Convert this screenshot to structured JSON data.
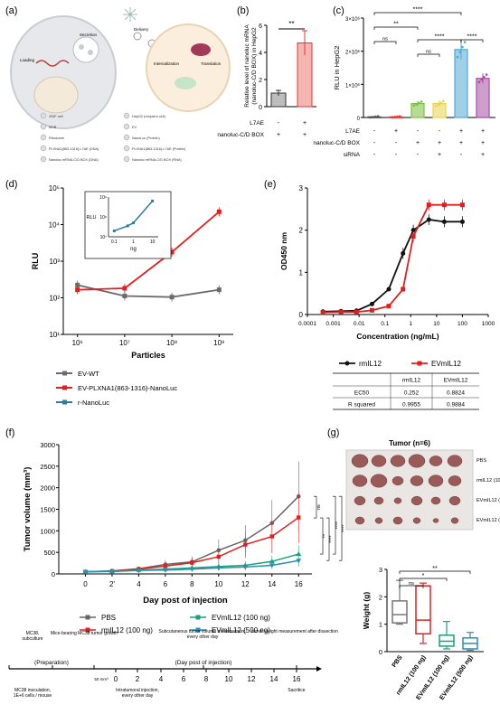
{
  "panel_labels": {
    "a": "(a)",
    "b": "(b)",
    "c": "(c)",
    "d": "(d)",
    "e": "(e)",
    "f": "(f)",
    "g": "(g)"
  },
  "panel_a": {
    "labels": [
      "Secretion",
      "Loading",
      "Delivery",
      "Internalization",
      "Translation"
    ],
    "legend": [
      "293F cell",
      "HepG2 (recipient cell)",
      "MVB",
      "EV",
      "Ribosome",
      "NanoLuc (Protein)",
      "PLXNA1(863-1316)-L7AE (DNA)",
      "PLXNA1(863-1316)-L7AE (Protein)",
      "Nanoluc mRNA-C/D BOX (DNA)",
      "Nanoluc mRNA-C/D BOX (RNA)"
    ]
  },
  "chart_data": [
    {
      "panel": "b",
      "type": "bar",
      "ylabel": "Relative level of nanoluc mRNA (nanoluc-C/D BOX) in HepG2",
      "categories": [
        "-",
        "+"
      ],
      "values": [
        1.0,
        4.7
      ],
      "errors": [
        0.2,
        0.9
      ],
      "ylim": [
        0,
        6
      ],
      "yticks": [
        0,
        2,
        4,
        6
      ],
      "colors": [
        "#bdbdbd",
        "#f4b6b0"
      ],
      "significance": "**",
      "row_labels": [
        "L7AE",
        "nanoluc-C/D BOX"
      ],
      "row_values": [
        [
          "-",
          "+"
        ],
        [
          "+",
          "+"
        ]
      ]
    },
    {
      "panel": "c",
      "type": "bar",
      "ylabel": "RLU in HepG2",
      "values": [
        0.02,
        0.02,
        0.42,
        0.42,
        2.05,
        1.18
      ],
      "errors": [
        0.02,
        0.02,
        0.08,
        0.1,
        0.3,
        0.15
      ],
      "ylim": [
        0,
        3
      ],
      "ytick_labels": [
        "0",
        "1×10⁶",
        "2×10⁶",
        "3×10⁶"
      ],
      "colors": [
        "#555555",
        "#e53935",
        "#7bc043",
        "#e8d44d",
        "#4fa9d6",
        "#a64ca6"
      ],
      "significance": [
        {
          "a": 0,
          "b": 4,
          "label": "****"
        },
        {
          "a": 0,
          "b": 2,
          "label": "**"
        },
        {
          "a": 0,
          "b": 1,
          "label": "ns"
        },
        {
          "a": 2,
          "b": 3,
          "label": "ns"
        },
        {
          "a": 2,
          "b": 4,
          "label": "****"
        },
        {
          "a": 4,
          "b": 5,
          "label": "****"
        }
      ],
      "row_labels": [
        "L7AE",
        "nanoluc-C/D BOX",
        "siRNA"
      ],
      "row_values": [
        [
          "-",
          "+",
          "-",
          "-",
          "+",
          "+"
        ],
        [
          "-",
          "-",
          "+",
          "+",
          "+",
          "+"
        ],
        [
          "-",
          "-",
          "-",
          "+",
          "-",
          "+"
        ]
      ]
    },
    {
      "panel": "d",
      "type": "line",
      "xlabel": "Particles",
      "ylabel": "RLU",
      "xscale": "log",
      "yscale": "log",
      "xlim": [
        1,
        9
      ],
      "ylim": [
        1,
        5
      ],
      "xtick_labels": [
        "10⁶",
        "10⁷",
        "10⁸",
        "10⁹"
      ],
      "xtick_pos": [
        6,
        7,
        8,
        9
      ],
      "ytick_labels": [
        "10¹",
        "10²",
        "10³",
        "10⁴",
        "10⁵"
      ],
      "ytick_pos": [
        1,
        2,
        3,
        4,
        5
      ],
      "series": [
        {
          "name": "EV-WT",
          "color": "#6b6b6b",
          "x": [
            6,
            7,
            8,
            9
          ],
          "y": [
            2.35,
            2.05,
            2.02,
            2.22
          ]
        },
        {
          "name": "EV-PLXNA1(863-1316)-NanoLuc",
          "color": "#e02020",
          "x": [
            6,
            7,
            8,
            9
          ],
          "y": [
            2.22,
            2.26,
            3.25,
            4.35
          ]
        }
      ],
      "inset": {
        "xlabel": "ng",
        "ylabel": "RLU",
        "xtick_labels": [
          "0.1",
          "1",
          "10"
        ],
        "ytick_labels": [
          "10⁷",
          "10⁸",
          "10⁹"
        ],
        "series": [
          {
            "name": "r-NanoLuc",
            "color": "#2a7f9e",
            "x": [
              -1,
              -0.3,
              0,
              1
            ],
            "y": [
              7.3,
              7.55,
              7.7,
              8.8
            ]
          }
        ]
      },
      "legend": [
        "EV-WT",
        "EV-PLXNA1(863-1316)-NanoLuc",
        "r-NanoLuc"
      ]
    },
    {
      "panel": "e",
      "type": "line",
      "xlabel": "Concentration (ng/mL)",
      "ylabel": "OD450 nm",
      "xscale": "log",
      "xtick_labels": [
        "0.0001",
        "0.001",
        "0.01",
        "0.1",
        "1",
        "10",
        "100",
        "1000"
      ],
      "ylim": [
        0,
        3
      ],
      "ytick_labels": [
        "0",
        "1",
        "2",
        "3"
      ],
      "series": [
        {
          "name": "rmIL12",
          "color": "#111111",
          "x": [
            -3.4,
            -2.7,
            -2.1,
            -1.5,
            -0.85,
            -0.3,
            0.1,
            0.7,
            1.3,
            2.0
          ],
          "y": [
            0.07,
            0.08,
            0.09,
            0.25,
            0.6,
            1.45,
            2.0,
            2.25,
            2.2,
            2.2
          ]
        },
        {
          "name": "EVmIL12",
          "color": "#e02020",
          "x": [
            -3.4,
            -2.7,
            -2.1,
            -1.5,
            -0.85,
            -0.3,
            0.1,
            0.7,
            1.3,
            2.0
          ],
          "y": [
            0.05,
            0.06,
            0.06,
            0.1,
            0.2,
            0.6,
            1.85,
            2.6,
            2.6,
            2.6
          ]
        }
      ],
      "table": {
        "headers": [
          "",
          "rmIL12",
          "EVmIL12"
        ],
        "rows": [
          [
            "EC50",
            "0.252",
            "0.8824"
          ],
          [
            "R squared",
            "0.9955",
            "0.9884"
          ]
        ]
      }
    },
    {
      "panel": "f",
      "type": "line",
      "xlabel": "Day post of injection",
      "ylabel": "Tumor volume (mm³)",
      "x": [
        0,
        2,
        4,
        6,
        8,
        10,
        12,
        14,
        16
      ],
      "xtick_labels": [
        "0",
        "2'",
        "4",
        "6",
        "8",
        "10",
        "12",
        "14",
        "16"
      ],
      "ylim": [
        0,
        3000
      ],
      "yticks": [
        0,
        500,
        1000,
        1500,
        2000,
        2500,
        3000
      ],
      "series": [
        {
          "name": "PBS",
          "color": "#666666",
          "y": [
            50,
            70,
            120,
            220,
            280,
            550,
            780,
            1180,
            1800
          ]
        },
        {
          "name": "rmIL12 (100 ng)",
          "color": "#e02020",
          "y": [
            50,
            65,
            110,
            180,
            260,
            400,
            680,
            870,
            1310
          ]
        },
        {
          "name": "EVmIL12 (100 ng)",
          "color": "#1aa07a",
          "y": [
            50,
            60,
            90,
            110,
            140,
            170,
            200,
            290,
            460
          ]
        },
        {
          "name": "EVmIL12 (500 ng)",
          "color": "#2a8fb0",
          "y": [
            50,
            55,
            80,
            90,
            110,
            140,
            160,
            200,
            310
          ]
        }
      ],
      "significance": [
        "ns",
        "**",
        "****",
        "****",
        "****"
      ]
    },
    {
      "panel": "g",
      "type": "box",
      "ylabel": "Weight (g)",
      "ylim": [
        0,
        3
      ],
      "yticks": [
        0,
        1,
        2,
        3
      ],
      "categories": [
        "PBS",
        "rmIL12 (100 ng)",
        "EVmIL12 (100 ng)",
        "EVmIL12 (500 ng)"
      ],
      "colors": [
        "#777777",
        "#e02020",
        "#1aa07a",
        "#2a8fb0"
      ],
      "boxes": [
        {
          "min": 1.0,
          "q1": 1.05,
          "median": 1.35,
          "q3": 1.85,
          "max": 2.6
        },
        {
          "min": 0.3,
          "q1": 0.65,
          "median": 1.15,
          "q3": 2.4,
          "max": 2.5
        },
        {
          "min": 0.1,
          "q1": 0.2,
          "median": 0.38,
          "q3": 0.6,
          "max": 1.1
        },
        {
          "min": 0.05,
          "q1": 0.1,
          "median": 0.3,
          "q3": 0.5,
          "max": 0.7
        }
      ],
      "significance": [
        {
          "a": 0,
          "b": 1,
          "label": "ns"
        },
        {
          "a": 0,
          "b": 2,
          "label": "*"
        },
        {
          "a": 0,
          "b": 3,
          "label": "**"
        }
      ],
      "photo_title": "Tumor (n=6)",
      "photo_rows": [
        "PBS",
        "rmIL12 (100 ng)",
        "EVmIL12 (100 ng)",
        "EVmIL12 (500 ng)"
      ]
    }
  ],
  "timeline": {
    "top_labels": [
      "MC38, subculture",
      "Mice-bearing MC38 tumor growth",
      "Subcutaneous tumor volume measurement, every other day",
      "tumor weight measurement after dissection"
    ],
    "sections": [
      "(Preparation)",
      "(Day post of injection)"
    ],
    "ticks": [
      "0",
      "2",
      "4",
      "6",
      "8",
      "10",
      "12",
      "14",
      "16"
    ],
    "volume_label": "50 mm³",
    "bottom_labels": [
      "MC38 inoculation, 1E+6 cells / mouse",
      "Intratumoral injection, every other day",
      "Sacritice"
    ]
  }
}
